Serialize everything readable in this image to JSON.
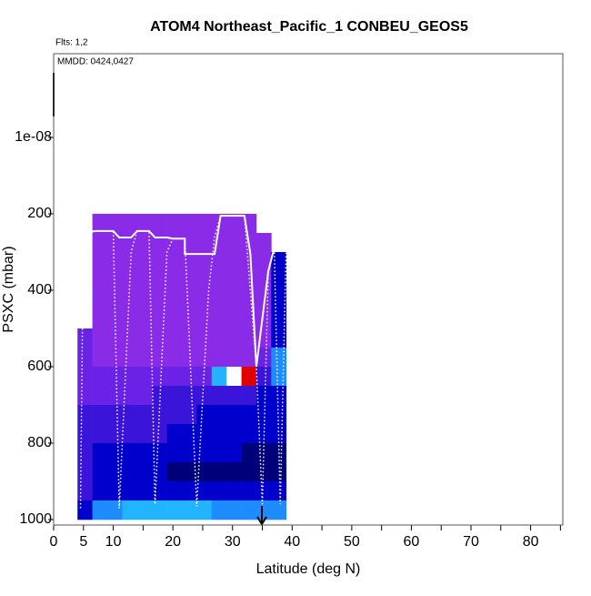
{
  "chart_data": {
    "type": "curtain",
    "title": "ATOM4 Northeast_Pacific_1 CONBEU_GEOS5",
    "subtitle": "Flts: 1,2",
    "annotation": "MMDD: 0424,0427",
    "xlabel": "Latitude (deg N)",
    "ylabel": "PSXC (mbar)",
    "xlim": [
      0,
      85.4
    ],
    "ylim": [
      1014.3,
      -219
    ],
    "xticks": [
      0,
      5,
      10,
      20,
      30,
      40,
      50,
      60,
      70,
      80
    ],
    "xminorticks": [
      15,
      25,
      35,
      45,
      55,
      65,
      75,
      85
    ],
    "yticks": [
      {
        "value": 1e-08,
        "label": "1e-08"
      },
      200,
      400,
      600,
      800,
      1000
    ],
    "colorscale": [
      "#00007a",
      "#0000cd",
      "#3a14d8",
      "#6a22e6",
      "#8a2be8",
      "#1e8cff",
      "#22b4ff",
      "#ffffff",
      "#ffd000",
      "#e00000"
    ],
    "lat_edges": [
      4,
      6.5,
      9,
      11.5,
      14,
      16.5,
      19,
      21.5,
      24,
      26.5,
      29,
      31.5,
      34,
      36.5,
      39
    ],
    "p_edges": [
      200,
      250,
      300,
      350,
      400,
      450,
      500,
      550,
      600,
      650,
      700,
      750,
      800,
      850,
      900,
      950,
      1000
    ],
    "values": [
      [
        null,
        4,
        4,
        4,
        4,
        4,
        4,
        4,
        4,
        4,
        4,
        4,
        null,
        null
      ],
      [
        null,
        4,
        4,
        4,
        4,
        4,
        4,
        4,
        4,
        4,
        4,
        4,
        4,
        null
      ],
      [
        null,
        4,
        4,
        4,
        4,
        4,
        4,
        4,
        4,
        4,
        4,
        4,
        4,
        1
      ],
      [
        null,
        4,
        4,
        4,
        4,
        4,
        4,
        4,
        4,
        4,
        4,
        4,
        4,
        1
      ],
      [
        null,
        4,
        4,
        4,
        4,
        4,
        4,
        4,
        4,
        4,
        4,
        4,
        4,
        1
      ],
      [
        null,
        4,
        4,
        4,
        4,
        4,
        4,
        4,
        4,
        4,
        4,
        4,
        4,
        1
      ],
      [
        3,
        4,
        4,
        4,
        4,
        4,
        4,
        4,
        4,
        4,
        4,
        4,
        4,
        1
      ],
      [
        3,
        4,
        4,
        4,
        4,
        4,
        4,
        4,
        4,
        4,
        4,
        4,
        3,
        5
      ],
      [
        3,
        3,
        3,
        3,
        3,
        3,
        3,
        3,
        3,
        6,
        7,
        9,
        2,
        5
      ],
      [
        3,
        3,
        3,
        3,
        3,
        2,
        2,
        2,
        2,
        2,
        2,
        2,
        1,
        1
      ],
      [
        2,
        2,
        2,
        2,
        2,
        2,
        2,
        2,
        1,
        1,
        1,
        1,
        1,
        1
      ],
      [
        2,
        2,
        2,
        2,
        2,
        2,
        1,
        1,
        1,
        1,
        1,
        1,
        1,
        1
      ],
      [
        2,
        1,
        1,
        1,
        1,
        1,
        1,
        1,
        1,
        1,
        1,
        0,
        0,
        0
      ],
      [
        2,
        1,
        1,
        1,
        1,
        1,
        0,
        0,
        0,
        0,
        0,
        0,
        0,
        0
      ],
      [
        2,
        1,
        1,
        1,
        1,
        1,
        1,
        1,
        1,
        1,
        1,
        1,
        1,
        1
      ],
      [
        1,
        5,
        5,
        6,
        6,
        6,
        6,
        6,
        6,
        5,
        5,
        5,
        5,
        5
      ]
    ],
    "series": [
      {
        "style": "solid",
        "color": "#ffffff",
        "x": [
          5,
          7,
          10,
          11,
          13,
          14,
          16,
          17,
          19,
          20,
          22,
          22,
          27,
          28,
          32,
          33,
          34,
          36,
          37,
          38,
          39,
          40
        ],
        "values": [
          250,
          245,
          245,
          262,
          262,
          245,
          245,
          262,
          262,
          265,
          265,
          305,
          305,
          205,
          205,
          305,
          600,
          350,
          290,
          290,
          290,
          290
        ]
      },
      {
        "style": "dotted",
        "color": "#ffffff",
        "x": [
          4.5,
          5,
          7,
          10,
          11,
          13,
          14,
          16,
          17,
          19,
          20,
          22,
          24,
          26,
          27,
          28,
          32,
          34,
          35,
          36,
          37,
          38,
          39,
          40
        ],
        "values": [
          970,
          250,
          245,
          245,
          970,
          300,
          245,
          245,
          960,
          300,
          265,
          265,
          965,
          400,
          260,
          205,
          205,
          600,
          960,
          350,
          290,
          960,
          290,
          290
        ]
      }
    ]
  }
}
